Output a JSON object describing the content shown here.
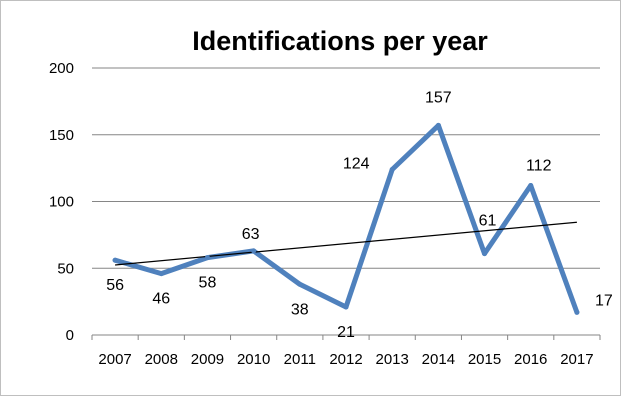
{
  "chart_data": {
    "type": "line",
    "title": "Identifications per year",
    "xlabel": "",
    "ylabel": "",
    "categories": [
      "2007",
      "2008",
      "2009",
      "2010",
      "2011",
      "2012",
      "2013",
      "2014",
      "2015",
      "2016",
      "2017"
    ],
    "series": [
      {
        "values": [
          56,
          46,
          58,
          63,
          38,
          21,
          124,
          157,
          61,
          112,
          17
        ],
        "color": "#4f81bd",
        "data_labels": [
          "56",
          "46",
          "58",
          "63",
          "38",
          "21",
          "124",
          "157",
          "61",
          "112",
          "17"
        ]
      }
    ],
    "trendline": {
      "type": "linear",
      "color": "#000000"
    },
    "ylim": [
      0,
      200
    ],
    "yticks": [
      "0",
      "50",
      "100",
      "150",
      "200"
    ],
    "grid": "horizontal",
    "legend": "none"
  }
}
